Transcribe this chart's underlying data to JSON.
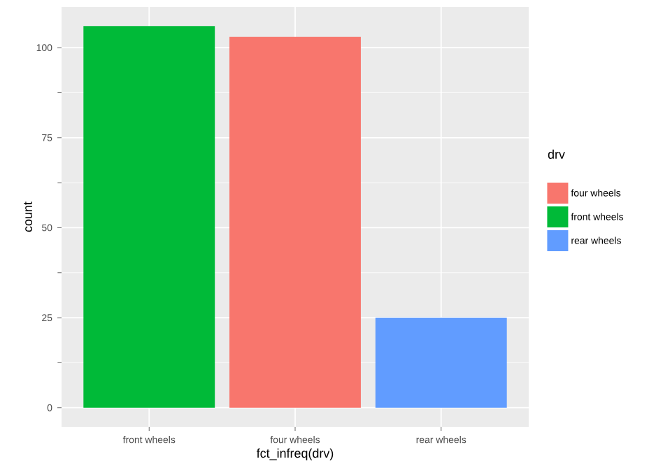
{
  "chart_data": {
    "type": "bar",
    "xlabel": "fct_infreq(drv)",
    "ylabel": "count",
    "legend_title": "drv",
    "categories": [
      "front wheels",
      "four wheels",
      "rear wheels"
    ],
    "series": [
      {
        "name": "four wheels",
        "color": "#f8766d",
        "values": [
          null,
          103,
          null
        ]
      },
      {
        "name": "front wheels",
        "color": "#00ba38",
        "values": [
          106,
          null,
          null
        ]
      },
      {
        "name": "rear wheels",
        "color": "#619cff",
        "values": [
          null,
          null,
          25
        ]
      }
    ],
    "ylim": [
      -5.3,
      111.3
    ],
    "yticks": [
      0,
      25,
      50,
      75,
      100
    ],
    "grid": true,
    "legend": "right"
  }
}
